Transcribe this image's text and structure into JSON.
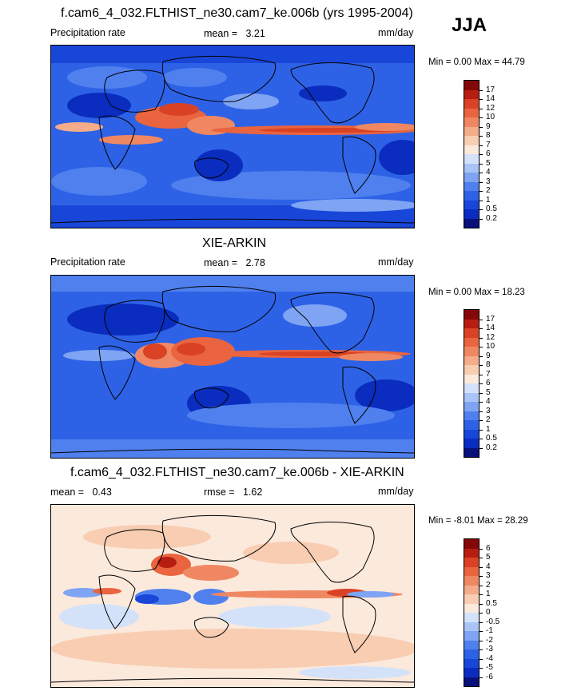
{
  "season": "JJA",
  "palettes": {
    "precip": [
      "#08107a",
      "#0a2dbf",
      "#1846d8",
      "#2e62e6",
      "#4f80ee",
      "#7ea4f3",
      "#a9c4f6",
      "#d3e2f9",
      "#fbe9dc",
      "#f8cdb2",
      "#f4ac8a",
      "#ef8862",
      "#e9643f",
      "#d94224",
      "#b61e12",
      "#850808"
    ],
    "diff": [
      "#08107a",
      "#0a2dbf",
      "#1846d8",
      "#2e62e6",
      "#4f80ee",
      "#7ea4f3",
      "#a9c4f6",
      "#d3e2f9",
      "#fbe9dc",
      "#f8cdb2",
      "#f4ac8a",
      "#ef8862",
      "#e9643f",
      "#d94224",
      "#b61e12",
      "#850808"
    ]
  },
  "panels": [
    {
      "title": "f.cam6_4_032.FLTHIST_ne30.cam7_ke.006b (yrs 1995-2004)",
      "left_label": "Precipitation rate",
      "stat_label": "mean =",
      "stat_value": "3.21",
      "units": "mm/day",
      "minmax": "Min =   0.00 Max =  44.79",
      "levels": [
        "17",
        "14",
        "12",
        "10",
        "9",
        "8",
        "7",
        "6",
        "5",
        "4",
        "3",
        "2",
        "1",
        "0.5",
        "0.2"
      ]
    },
    {
      "title": "XIE-ARKIN",
      "left_label": "Precipitation rate",
      "stat_label": "mean =",
      "stat_value": "2.78",
      "units": "mm/day",
      "minmax": "Min =   0.00 Max =  18.23",
      "levels": [
        "17",
        "14",
        "12",
        "10",
        "9",
        "8",
        "7",
        "6",
        "5",
        "4",
        "3",
        "2",
        "1",
        "0.5",
        "0.2"
      ]
    },
    {
      "title": "f.cam6_4_032.FLTHIST_ne30.cam7_ke.006b - XIE-ARKIN",
      "left_label": "mean =",
      "left_value": "0.43",
      "stat_label": "rmse =",
      "stat_value": "1.62",
      "units": "mm/day",
      "minmax": "Min =  -8.01 Max =  28.29",
      "levels": [
        "6",
        "5",
        "4",
        "3",
        "2",
        "1",
        "0.5",
        "0",
        "-0.5",
        "-1",
        "-2",
        "-3",
        "-4",
        "-5",
        "-6"
      ]
    }
  ],
  "chart_data": [
    {
      "type": "heatmap",
      "title": "f.cam6_4_032.FLTHIST_ne30.cam7_ke.006b (yrs 1995-2004)",
      "variable": "Precipitation rate",
      "units": "mm/day",
      "mean": 3.21,
      "min": 0.0,
      "max": 44.79,
      "contour_levels": [
        0.2,
        0.5,
        1,
        2,
        3,
        4,
        5,
        6,
        7,
        8,
        9,
        10,
        12,
        14,
        17
      ],
      "xlim": [
        0,
        360
      ],
      "ylim": [
        -90,
        90
      ]
    },
    {
      "type": "heatmap",
      "title": "XIE-ARKIN",
      "variable": "Precipitation rate",
      "units": "mm/day",
      "mean": 2.78,
      "min": 0.0,
      "max": 18.23,
      "contour_levels": [
        0.2,
        0.5,
        1,
        2,
        3,
        4,
        5,
        6,
        7,
        8,
        9,
        10,
        12,
        14,
        17
      ],
      "xlim": [
        0,
        360
      ],
      "ylim": [
        -90,
        90
      ]
    },
    {
      "type": "heatmap",
      "title": "f.cam6_4_032.FLTHIST_ne30.cam7_ke.006b - XIE-ARKIN",
      "units": "mm/day",
      "mean": 0.43,
      "rmse": 1.62,
      "min": -8.01,
      "max": 28.29,
      "contour_levels": [
        -6,
        -5,
        -4,
        -3,
        -2,
        -1,
        -0.5,
        0,
        0.5,
        1,
        2,
        3,
        4,
        5,
        6
      ],
      "xlim": [
        0,
        360
      ],
      "ylim": [
        -90,
        90
      ]
    }
  ]
}
